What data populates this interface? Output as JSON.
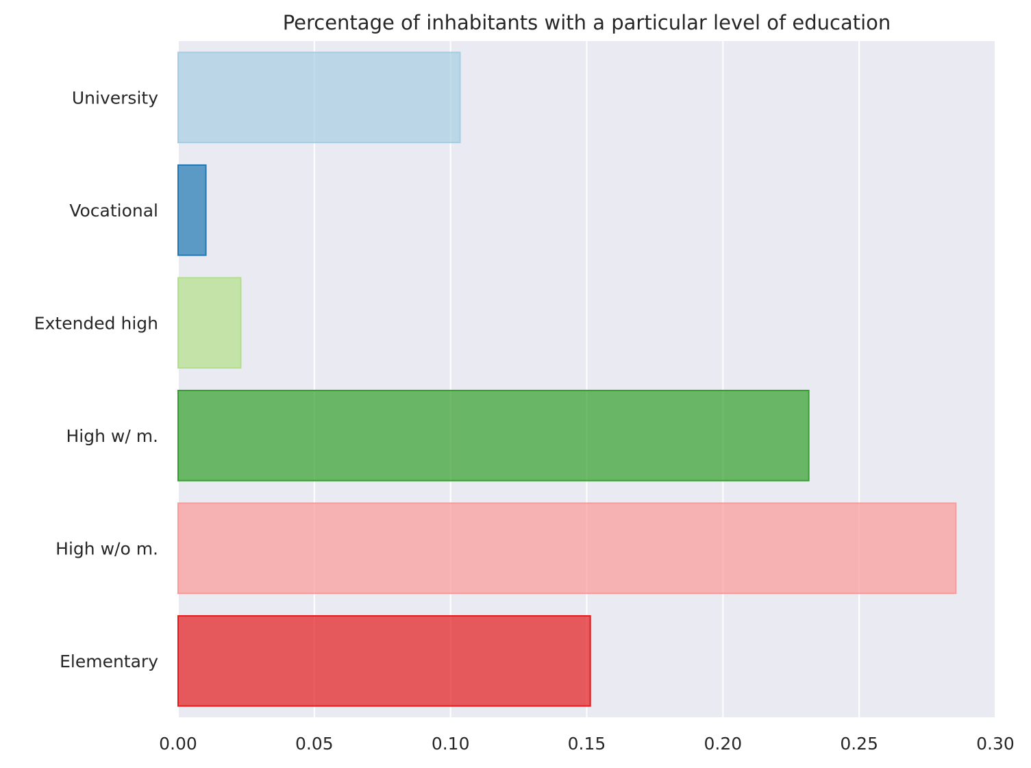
{
  "chart_data": {
    "type": "bar",
    "orientation": "horizontal",
    "title": "Percentage of inhabitants with a particular level of education",
    "xlabel": "",
    "ylabel": "",
    "xlim": [
      0,
      0.3
    ],
    "xticks": [
      "0.00",
      "0.05",
      "0.10",
      "0.15",
      "0.20",
      "0.25",
      "0.30"
    ],
    "grid": true,
    "categories": [
      "University",
      "Vocational",
      "Extended high",
      "High w/ m.",
      "High w/o m.",
      "Elementary"
    ],
    "values": [
      0.1035,
      0.0102,
      0.023,
      0.2315,
      0.2855,
      0.1513
    ],
    "colors": [
      "#a6cee3",
      "#1f78b4",
      "#b2df8a",
      "#33a02c",
      "#fb9a99",
      "#e31a1c"
    ],
    "bar_opacity": 0.7
  }
}
